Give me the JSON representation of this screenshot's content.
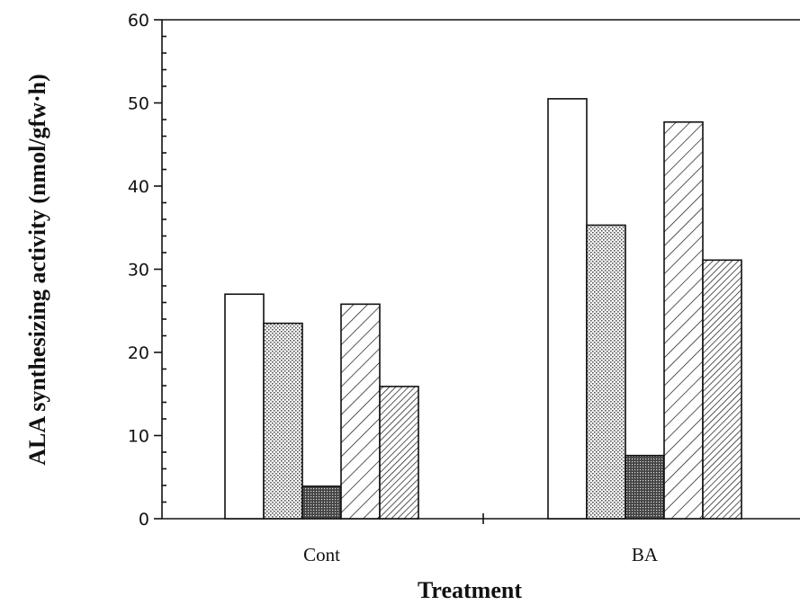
{
  "chart_data": {
    "type": "bar",
    "title": "",
    "xlabel": "Treatment",
    "ylabel": "ALA synthesizing activity (nmol/gfw·h)",
    "ylim": [
      0,
      60
    ],
    "yticks": [
      0,
      10,
      20,
      30,
      40,
      50,
      60
    ],
    "categories": [
      "Cont",
      "BA"
    ],
    "grid": false,
    "legend": "none",
    "series": [
      {
        "values": [
          27,
          50.5
        ],
        "pattern": "white"
      },
      {
        "values": [
          23.5,
          35.3
        ],
        "pattern": "light-dots"
      },
      {
        "values": [
          3.9,
          7.6
        ],
        "pattern": "dark-dots"
      },
      {
        "values": [
          25.8,
          47.7
        ],
        "pattern": "wide-hatch"
      },
      {
        "values": [
          15.9,
          31.1
        ],
        "pattern": "dense-hatch"
      }
    ]
  }
}
